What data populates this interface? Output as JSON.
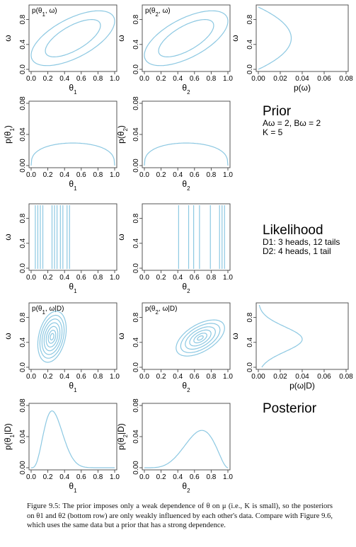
{
  "colors": {
    "curve": "#8cc8e2",
    "axis": "#444444",
    "text": "#000000"
  },
  "side_texts": [
    {
      "heading": "Prior",
      "lines": [
        "Aω = 2, Bω = 2",
        "K = 5"
      ]
    },
    {
      "heading": "Likelihood",
      "lines": [
        "D1: 3 heads, 12 tails",
        "D2: 4 heads, 1 tail"
      ]
    },
    {
      "heading": "Posterior",
      "lines": []
    }
  ],
  "caption": "Figure 9.5: The prior imposes only a weak dependence of θ on μ (i.e., K is small), so the posteriors on θ1 and θ2 (bottom row) are only weakly influenced by each other's data. Compare with Figure 9.6, which uses the same data but a prior that has a strong dependence.",
  "chart_data": [
    {
      "id": "prior-joint-1",
      "type": "contour",
      "title": "p(θ1, ω)",
      "xlabel": "θ1",
      "ylabel": "ω",
      "xlim": [
        0,
        1
      ],
      "ylim": [
        0,
        1
      ],
      "xticks": [
        "0.0",
        "0.2",
        "0.4",
        "0.6",
        "0.8",
        "1.0"
      ],
      "yticks": [
        "0.0",
        "0.4",
        "0.8"
      ],
      "contours": [
        {
          "cx": 0.5,
          "cy": 0.5,
          "sx": 0.5,
          "sy": 0.44,
          "rho": 0.62
        },
        {
          "cx": 0.5,
          "cy": 0.5,
          "sx": 0.33,
          "sy": 0.3,
          "rho": 0.68
        }
      ]
    },
    {
      "id": "prior-joint-2",
      "type": "contour",
      "title": "p(θ2, ω)",
      "xlabel": "θ2",
      "ylabel": "ω",
      "xlim": [
        0,
        1
      ],
      "ylim": [
        0,
        1
      ],
      "xticks": [
        "0.0",
        "0.2",
        "0.4",
        "0.6",
        "0.8",
        "1.0"
      ],
      "yticks": [
        "0.0",
        "0.4",
        "0.8"
      ],
      "contours": [
        {
          "cx": 0.5,
          "cy": 0.5,
          "sx": 0.5,
          "sy": 0.44,
          "rho": 0.62
        },
        {
          "cx": 0.5,
          "cy": 0.5,
          "sx": 0.33,
          "sy": 0.3,
          "rho": 0.68
        }
      ]
    },
    {
      "id": "prior-omega",
      "type": "line",
      "orientation": "sideways",
      "title": "",
      "xlabel": "p(ω)",
      "ylabel": "ω",
      "xlim": [
        0,
        0.08
      ],
      "ylim": [
        0,
        1
      ],
      "xticks": [
        "0.00",
        "0.02",
        "0.04",
        "0.06",
        "0.08"
      ],
      "yticks": [
        "0.0",
        "0.4",
        "0.8"
      ],
      "curve": {
        "kind": "beta",
        "a": 2,
        "b": 2,
        "peak": 0.03
      }
    },
    {
      "id": "prior-theta-1",
      "type": "line",
      "title": "",
      "xlabel": "θ1",
      "ylabel": "p(θ1)",
      "xlim": [
        0,
        1
      ],
      "ylim": [
        0,
        0.08
      ],
      "xticks": [
        "0.0",
        "0.2",
        "0.4",
        "0.6",
        "0.8",
        "1.0"
      ],
      "yticks": [
        "0.00",
        "0.04",
        "0.08"
      ],
      "curve": {
        "kind": "beta",
        "a": 1.35,
        "b": 1.35,
        "peak": 0.029
      }
    },
    {
      "id": "prior-theta-2",
      "type": "line",
      "title": "",
      "xlabel": "θ2",
      "ylabel": "p(θ2)",
      "xlim": [
        0,
        1
      ],
      "ylim": [
        0,
        0.08
      ],
      "xticks": [
        "0.0",
        "0.2",
        "0.4",
        "0.6",
        "0.8",
        "1.0"
      ],
      "yticks": [
        "0.00",
        "0.04",
        "0.08"
      ],
      "curve": {
        "kind": "beta",
        "a": 1.35,
        "b": 1.35,
        "peak": 0.029
      }
    },
    {
      "id": "likelihood-1",
      "type": "vlines",
      "title": "",
      "xlabel": "θ1",
      "ylabel": "ω",
      "xlim": [
        0,
        1
      ],
      "ylim": [
        0,
        1
      ],
      "xticks": [
        "0.0",
        "0.2",
        "0.4",
        "0.6",
        "0.8",
        "1.0"
      ],
      "yticks": [
        "0.0",
        "0.4",
        "0.8"
      ],
      "lines": [
        0.05,
        0.08,
        0.11,
        0.14,
        0.25,
        0.28,
        0.31,
        0.35,
        0.38,
        0.43,
        0.46
      ]
    },
    {
      "id": "likelihood-2",
      "type": "vlines",
      "title": "",
      "xlabel": "θ2",
      "ylabel": "ω",
      "xlim": [
        0,
        1
      ],
      "ylim": [
        0,
        1
      ],
      "xticks": [
        "0.0",
        "0.2",
        "0.4",
        "0.6",
        "0.8",
        "1.0"
      ],
      "yticks": [
        "0.0",
        "0.4",
        "0.8"
      ],
      "lines": [
        0.41,
        0.53,
        0.59,
        0.66,
        0.79,
        0.9,
        0.93,
        0.96
      ]
    },
    {
      "id": "posterior-joint-1",
      "type": "contour",
      "title": "p(θ1, ω|D)",
      "xlabel": "θ1",
      "ylabel": "ω",
      "xlim": [
        0,
        1
      ],
      "ylim": [
        0,
        1
      ],
      "xticks": [
        "0.0",
        "0.2",
        "0.4",
        "0.6",
        "0.8",
        "1.0"
      ],
      "yticks": [
        "0.0",
        "0.4",
        "0.8"
      ],
      "contours": [
        {
          "cx": 0.25,
          "cy": 0.49,
          "sx": 0.17,
          "sy": 0.41,
          "rho": 0.3
        },
        {
          "cx": 0.25,
          "cy": 0.49,
          "sx": 0.145,
          "sy": 0.345,
          "rho": 0.3
        },
        {
          "cx": 0.25,
          "cy": 0.49,
          "sx": 0.12,
          "sy": 0.285,
          "rho": 0.3
        },
        {
          "cx": 0.25,
          "cy": 0.49,
          "sx": 0.095,
          "sy": 0.225,
          "rho": 0.3
        },
        {
          "cx": 0.25,
          "cy": 0.49,
          "sx": 0.07,
          "sy": 0.165,
          "rho": 0.3
        },
        {
          "cx": 0.25,
          "cy": 0.49,
          "sx": 0.045,
          "sy": 0.105,
          "rho": 0.3
        },
        {
          "cx": 0.25,
          "cy": 0.49,
          "sx": 0.022,
          "sy": 0.052,
          "rho": 0.3
        }
      ]
    },
    {
      "id": "posterior-joint-2",
      "type": "contour",
      "title": "p(θ2, ω|D)",
      "xlabel": "θ2",
      "ylabel": "ω",
      "xlim": [
        0,
        1
      ],
      "ylim": [
        0,
        1
      ],
      "xticks": [
        "0.0",
        "0.2",
        "0.4",
        "0.6",
        "0.8",
        "1.0"
      ],
      "yticks": [
        "0.0",
        "0.4",
        "0.8"
      ],
      "contours": [
        {
          "cx": 0.67,
          "cy": 0.47,
          "sx": 0.29,
          "sy": 0.29,
          "rho": 0.55
        },
        {
          "cx": 0.67,
          "cy": 0.47,
          "sx": 0.235,
          "sy": 0.235,
          "rho": 0.55
        },
        {
          "cx": 0.67,
          "cy": 0.47,
          "sx": 0.18,
          "sy": 0.18,
          "rho": 0.55
        },
        {
          "cx": 0.67,
          "cy": 0.47,
          "sx": 0.128,
          "sy": 0.128,
          "rho": 0.55
        },
        {
          "cx": 0.67,
          "cy": 0.47,
          "sx": 0.078,
          "sy": 0.078,
          "rho": 0.55
        },
        {
          "cx": 0.67,
          "cy": 0.47,
          "sx": 0.035,
          "sy": 0.035,
          "rho": 0.55
        }
      ]
    },
    {
      "id": "posterior-omega",
      "type": "line",
      "orientation": "sideways",
      "title": "",
      "xlabel": "p(ω|D)",
      "ylabel": "ω",
      "xlim": [
        0,
        0.08
      ],
      "ylim": [
        0,
        1
      ],
      "xticks": [
        "0.00",
        "0.02",
        "0.04",
        "0.06",
        "0.08"
      ],
      "yticks": [
        "0.0",
        "0.4",
        "0.8"
      ],
      "curve": {
        "kind": "gauss",
        "mu": 0.45,
        "sd": 0.2,
        "peak": 0.04
      }
    },
    {
      "id": "posterior-theta-1",
      "type": "line",
      "title": "",
      "xlabel": "θ1",
      "ylabel": "p(θ1|D)",
      "xlim": [
        0,
        1
      ],
      "ylim": [
        0,
        0.08
      ],
      "xticks": [
        "0.0",
        "0.2",
        "0.4",
        "0.6",
        "0.8",
        "1.0"
      ],
      "yticks": [
        "0.00",
        "0.04",
        "0.08"
      ],
      "curve": {
        "kind": "beta",
        "a": 4.5,
        "b": 11.5,
        "peak": 0.073
      }
    },
    {
      "id": "posterior-theta-2",
      "type": "line",
      "title": "",
      "xlabel": "θ2",
      "ylabel": "p(θ2|D)",
      "xlim": [
        0,
        1
      ],
      "ylim": [
        0,
        0.08
      ],
      "xticks": [
        "0.0",
        "0.2",
        "0.4",
        "0.6",
        "0.8",
        "1.0"
      ],
      "yticks": [
        "0.00",
        "0.04",
        "0.08"
      ],
      "curve": {
        "kind": "beta",
        "a": 5.2,
        "b": 2.9,
        "peak": 0.048
      }
    }
  ]
}
